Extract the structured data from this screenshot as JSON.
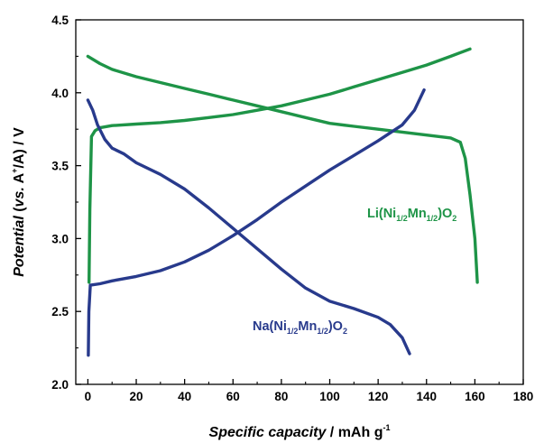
{
  "chart_data": {
    "type": "line",
    "xlim": [
      -5,
      180
    ],
    "ylim": [
      2.0,
      4.5
    ],
    "x_ticks": [
      "0",
      "20",
      "40",
      "60",
      "80",
      "100",
      "120",
      "140",
      "160",
      "180"
    ],
    "y_ticks": [
      "2.0",
      "2.5",
      "3.0",
      "3.5",
      "4.0",
      "4.5"
    ],
    "xlabel": {
      "italic": "Specific capacity",
      "plain": " / mAh g",
      "sup": "-1"
    },
    "ylabel": {
      "italic1": "Potential",
      "plain1": " (",
      "italic2": "vs.",
      "plain2": " A",
      "sup": "+",
      "plain3": "/A) / V"
    },
    "grid": false,
    "series": [
      {
        "name": "Li(Ni1/2Mn1/2)O2",
        "label": {
          "a": "Li(Ni",
          "b": "1/2",
          "c": "Mn",
          "d": "1/2",
          "e": ")O",
          "f": "2"
        },
        "color": "#1e9447",
        "branches": [
          {
            "role": "charge",
            "x": [
              0.5,
              0.8,
              1.5,
              3,
              5,
              10,
              20,
              30,
              40,
              50,
              60,
              70,
              80,
              90,
              100,
              110,
              120,
              130,
              140,
              150,
              158
            ],
            "y": [
              2.7,
              3.2,
              3.7,
              3.74,
              3.76,
              3.775,
              3.785,
              3.795,
              3.81,
              3.83,
              3.85,
              3.88,
              3.91,
              3.95,
              3.99,
              4.04,
              4.09,
              4.14,
              4.19,
              4.25,
              4.3
            ]
          },
          {
            "role": "discharge",
            "x": [
              0,
              5,
              10,
              20,
              30,
              40,
              50,
              60,
              70,
              80,
              90,
              100,
              110,
              120,
              130,
              140,
              150,
              154,
              156,
              158,
              160,
              161
            ],
            "y": [
              4.25,
              4.2,
              4.16,
              4.11,
              4.07,
              4.03,
              3.99,
              3.95,
              3.91,
              3.87,
              3.83,
              3.79,
              3.77,
              3.75,
              3.73,
              3.71,
              3.69,
              3.66,
              3.55,
              3.3,
              3.0,
              2.7
            ]
          }
        ]
      },
      {
        "name": "Na(Ni1/2Mn1/2)O2",
        "label": {
          "a": "Na(Ni",
          "b": "1/2",
          "c": "Mn",
          "d": "1/2",
          "e": ")O",
          "f": "2"
        },
        "color": "#283a8c",
        "branches": [
          {
            "role": "charge",
            "x": [
              0.2,
              0.4,
              1,
              5,
              10,
              20,
              30,
              40,
              50,
              60,
              70,
              80,
              90,
              100,
              110,
              120,
              130,
              135,
              139
            ],
            "y": [
              2.2,
              2.5,
              2.68,
              2.69,
              2.71,
              2.74,
              2.78,
              2.84,
              2.92,
              3.02,
              3.13,
              3.25,
              3.36,
              3.47,
              3.57,
              3.67,
              3.78,
              3.88,
              4.02
            ]
          },
          {
            "role": "discharge",
            "x": [
              0,
              2,
              4,
              7,
              10,
              15,
              20,
              30,
              40,
              50,
              60,
              70,
              80,
              90,
              100,
              110,
              120,
              125,
              130,
              133
            ],
            "y": [
              3.95,
              3.88,
              3.78,
              3.68,
              3.62,
              3.58,
              3.52,
              3.44,
              3.34,
              3.21,
              3.07,
              2.93,
              2.79,
              2.66,
              2.57,
              2.52,
              2.46,
              2.41,
              2.32,
              2.21
            ]
          }
        ]
      }
    ]
  }
}
